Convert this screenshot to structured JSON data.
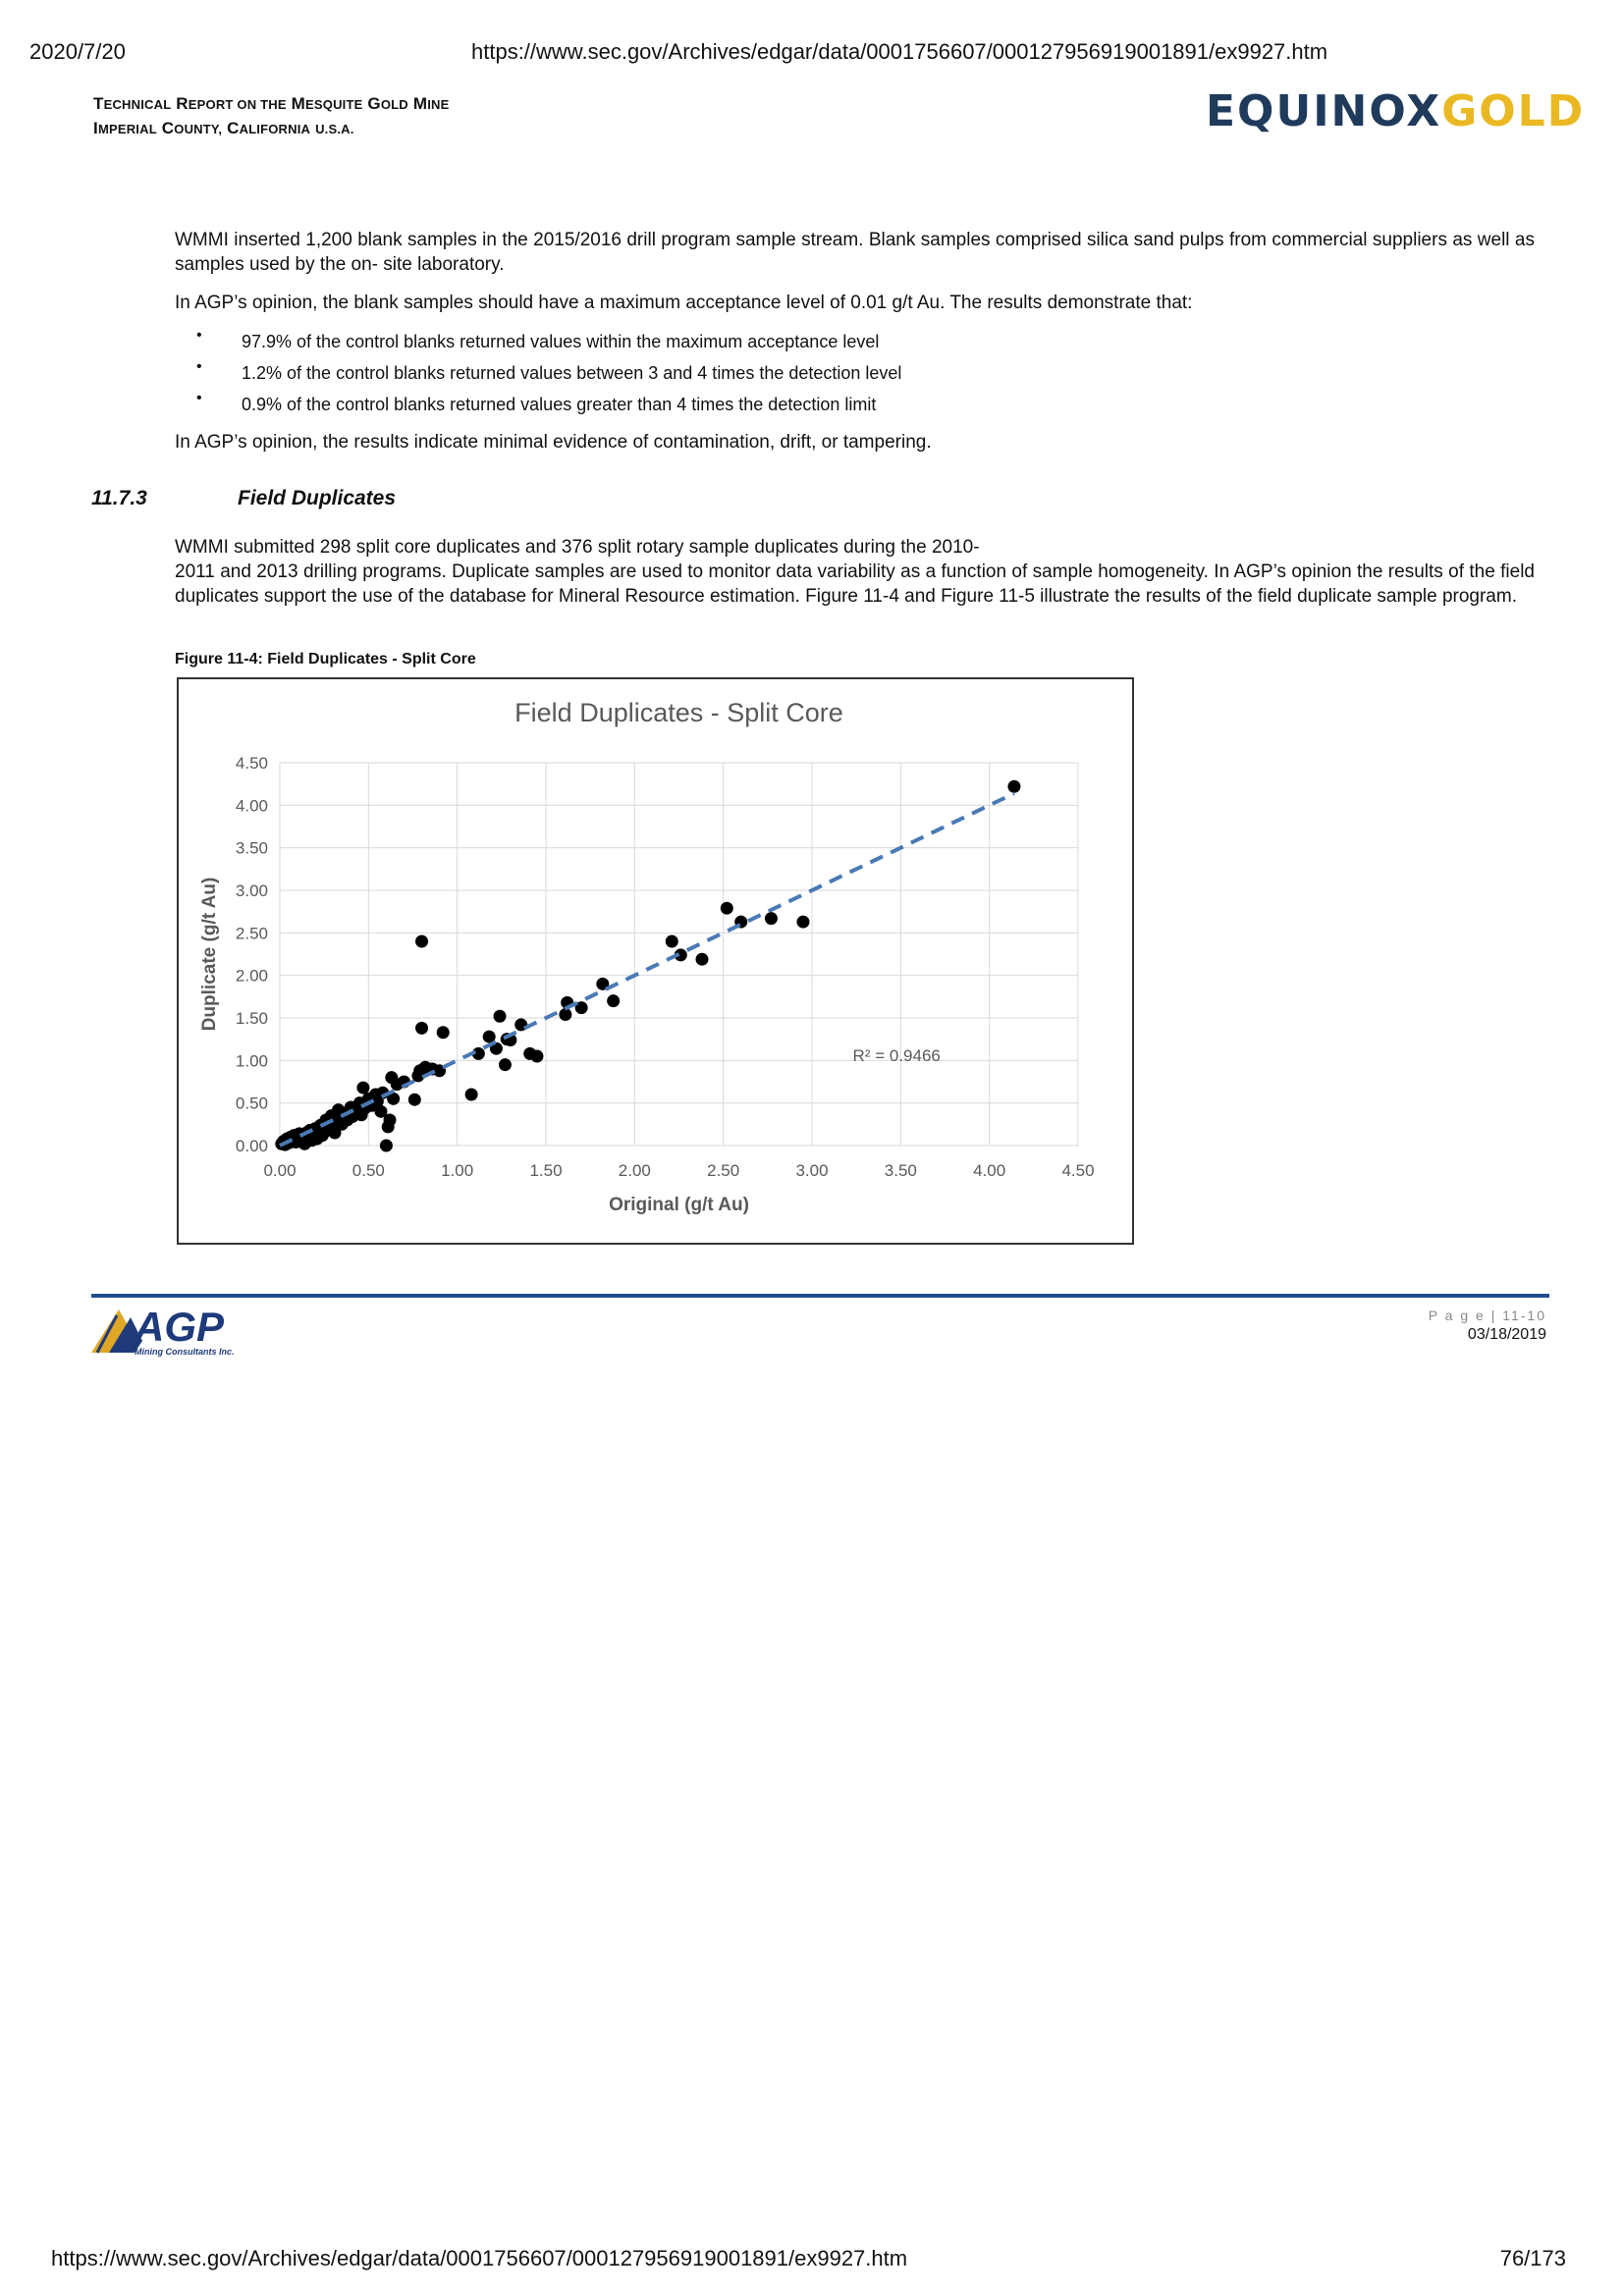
{
  "browser": {
    "date": "2020/7/20",
    "url_top": "https://www.sec.gov/Archives/edgar/data/0001756607/000127956919001891/ex9927.htm",
    "url_bottom": "https://www.sec.gov/Archives/edgar/data/0001756607/000127956919001891/ex9927.htm",
    "page_counter": "76/173"
  },
  "header": {
    "line1_initial_1": "T",
    "line1_rest_1": "ECHNICAL",
    "line1_initial_2": "R",
    "line1_rest_2": "EPORT ON THE",
    "line1_initial_3": "M",
    "line1_rest_3": "ESQUITE",
    "line1_initial_4": "G",
    "line1_rest_4": "OLD",
    "line1_initial_5": "M",
    "line1_rest_5": "INE",
    "line2_initial_1": "I",
    "line2_rest_1": "MPERIAL",
    "line2_initial_2": "C",
    "line2_rest_2": "OUNTY,",
    "line2_initial_3": "C",
    "line2_rest_3": "ALIFORNIA",
    "line2_rest_4": "U.S.A.",
    "logo_part1": "EQUINOX",
    "logo_part2": "GOLD"
  },
  "body": {
    "para1": "WMMI inserted 1,200 blank samples in the 2015/2016 drill program sample stream. Blank samples comprised silica sand pulps from commercial suppliers as well as samples used by the on- site laboratory.",
    "para2": "In AGP’s opinion, the blank samples should have a maximum acceptance level of 0.01 g/t Au. The results demonstrate that:",
    "bullets": [
      "97.9% of the control blanks returned values within the maximum acceptance level",
      "1.2% of the control blanks returned values between 3 and 4 times the detection level",
      "0.9% of the control blanks returned values greater than 4 times the detection limit"
    ],
    "bullet_glyph": "•",
    "para3": "In AGP’s opinion, the results indicate minimal evidence of contamination, drift, or tampering.",
    "section_number": "11.7.3",
    "section_title": "Field Duplicates",
    "para4_line1": "WMMI submitted 298 split core duplicates and 376 split rotary sample duplicates during the 2010-",
    "para4_rest": "2011 and 2013 drilling programs. Duplicate samples are used to monitor data variability as a function of sample homogeneity. In AGP’s opinion the results of the field duplicates support the use of the database for Mineral Resource estimation. Figure 11-4 and Figure 11-5 illustrate the results of the field duplicate sample program.",
    "figure_caption": "Figure 11-4: Field Duplicates - Split Core"
  },
  "chart_data": {
    "type": "scatter",
    "title": "Field Duplicates - Split Core",
    "xlabel": "Original (g/t Au)",
    "ylabel": "Duplicate (g/t Au)",
    "xlim": [
      0,
      4.5
    ],
    "ylim": [
      0,
      4.5
    ],
    "x_ticks": [
      "0.00",
      "0.50",
      "1.00",
      "1.50",
      "2.00",
      "2.50",
      "3.00",
      "3.50",
      "4.00",
      "4.50"
    ],
    "y_ticks": [
      "0.00",
      "0.50",
      "1.00",
      "1.50",
      "2.00",
      "2.50",
      "3.00",
      "3.50",
      "4.00",
      "4.50"
    ],
    "grid": true,
    "trendline": {
      "style": "dashed",
      "color": "#4a7ab5",
      "x": [
        0.0,
        4.14
      ],
      "y": [
        0.0,
        4.14
      ]
    },
    "r2_label": "R² = 0.9466",
    "marker_color": "#000000",
    "points": [
      [
        0.01,
        0.02
      ],
      [
        0.02,
        0.05
      ],
      [
        0.03,
        0.01
      ],
      [
        0.04,
        0.08
      ],
      [
        0.05,
        0.03
      ],
      [
        0.06,
        0.1
      ],
      [
        0.07,
        0.06
      ],
      [
        0.08,
        0.12
      ],
      [
        0.09,
        0.04
      ],
      [
        0.1,
        0.09
      ],
      [
        0.11,
        0.14
      ],
      [
        0.12,
        0.07
      ],
      [
        0.13,
        0.11
      ],
      [
        0.14,
        0.02
      ],
      [
        0.15,
        0.15
      ],
      [
        0.16,
        0.1
      ],
      [
        0.17,
        0.18
      ],
      [
        0.18,
        0.06
      ],
      [
        0.19,
        0.13
      ],
      [
        0.2,
        0.2
      ],
      [
        0.21,
        0.08
      ],
      [
        0.22,
        0.16
      ],
      [
        0.23,
        0.24
      ],
      [
        0.24,
        0.12
      ],
      [
        0.25,
        0.2
      ],
      [
        0.26,
        0.3
      ],
      [
        0.27,
        0.18
      ],
      [
        0.28,
        0.22
      ],
      [
        0.29,
        0.35
      ],
      [
        0.3,
        0.26
      ],
      [
        0.31,
        0.15
      ],
      [
        0.32,
        0.28
      ],
      [
        0.33,
        0.42
      ],
      [
        0.34,
        0.32
      ],
      [
        0.35,
        0.25
      ],
      [
        0.36,
        0.38
      ],
      [
        0.38,
        0.3
      ],
      [
        0.4,
        0.45
      ],
      [
        0.41,
        0.34
      ],
      [
        0.43,
        0.4
      ],
      [
        0.45,
        0.5
      ],
      [
        0.46,
        0.36
      ],
      [
        0.47,
        0.68
      ],
      [
        0.48,
        0.44
      ],
      [
        0.5,
        0.55
      ],
      [
        0.52,
        0.47
      ],
      [
        0.54,
        0.6
      ],
      [
        0.55,
        0.52
      ],
      [
        0.57,
        0.4
      ],
      [
        0.58,
        0.62
      ],
      [
        0.6,
        0.0
      ],
      [
        0.61,
        0.22
      ],
      [
        0.62,
        0.3
      ],
      [
        0.63,
        0.8
      ],
      [
        0.64,
        0.55
      ],
      [
        0.66,
        0.72
      ],
      [
        0.7,
        0.75
      ],
      [
        0.76,
        0.54
      ],
      [
        0.78,
        0.82
      ],
      [
        0.79,
        0.88
      ],
      [
        0.8,
        1.38
      ],
      [
        0.8,
        2.4
      ],
      [
        0.82,
        0.92
      ],
      [
        0.86,
        0.9
      ],
      [
        0.9,
        0.88
      ],
      [
        0.92,
        1.33
      ],
      [
        1.08,
        0.6
      ],
      [
        1.12,
        1.08
      ],
      [
        1.18,
        1.28
      ],
      [
        1.22,
        1.14
      ],
      [
        1.24,
        1.52
      ],
      [
        1.27,
        0.95
      ],
      [
        1.28,
        1.25
      ],
      [
        1.3,
        1.24
      ],
      [
        1.36,
        1.42
      ],
      [
        1.41,
        1.08
      ],
      [
        1.45,
        1.05
      ],
      [
        1.61,
        1.54
      ],
      [
        1.62,
        1.68
      ],
      [
        1.7,
        1.62
      ],
      [
        1.82,
        1.9
      ],
      [
        1.88,
        1.7
      ],
      [
        2.21,
        2.4
      ],
      [
        2.26,
        2.24
      ],
      [
        2.38,
        2.19
      ],
      [
        2.52,
        2.79
      ],
      [
        2.6,
        2.63
      ],
      [
        2.77,
        2.67
      ],
      [
        2.95,
        2.63
      ],
      [
        4.14,
        4.22
      ]
    ]
  },
  "footer": {
    "agp_logo_text": "AGP",
    "agp_logo_sub": "Mining Consultants Inc.",
    "page_label": "P a g e | 11-10",
    "date": "03/18/2019"
  }
}
